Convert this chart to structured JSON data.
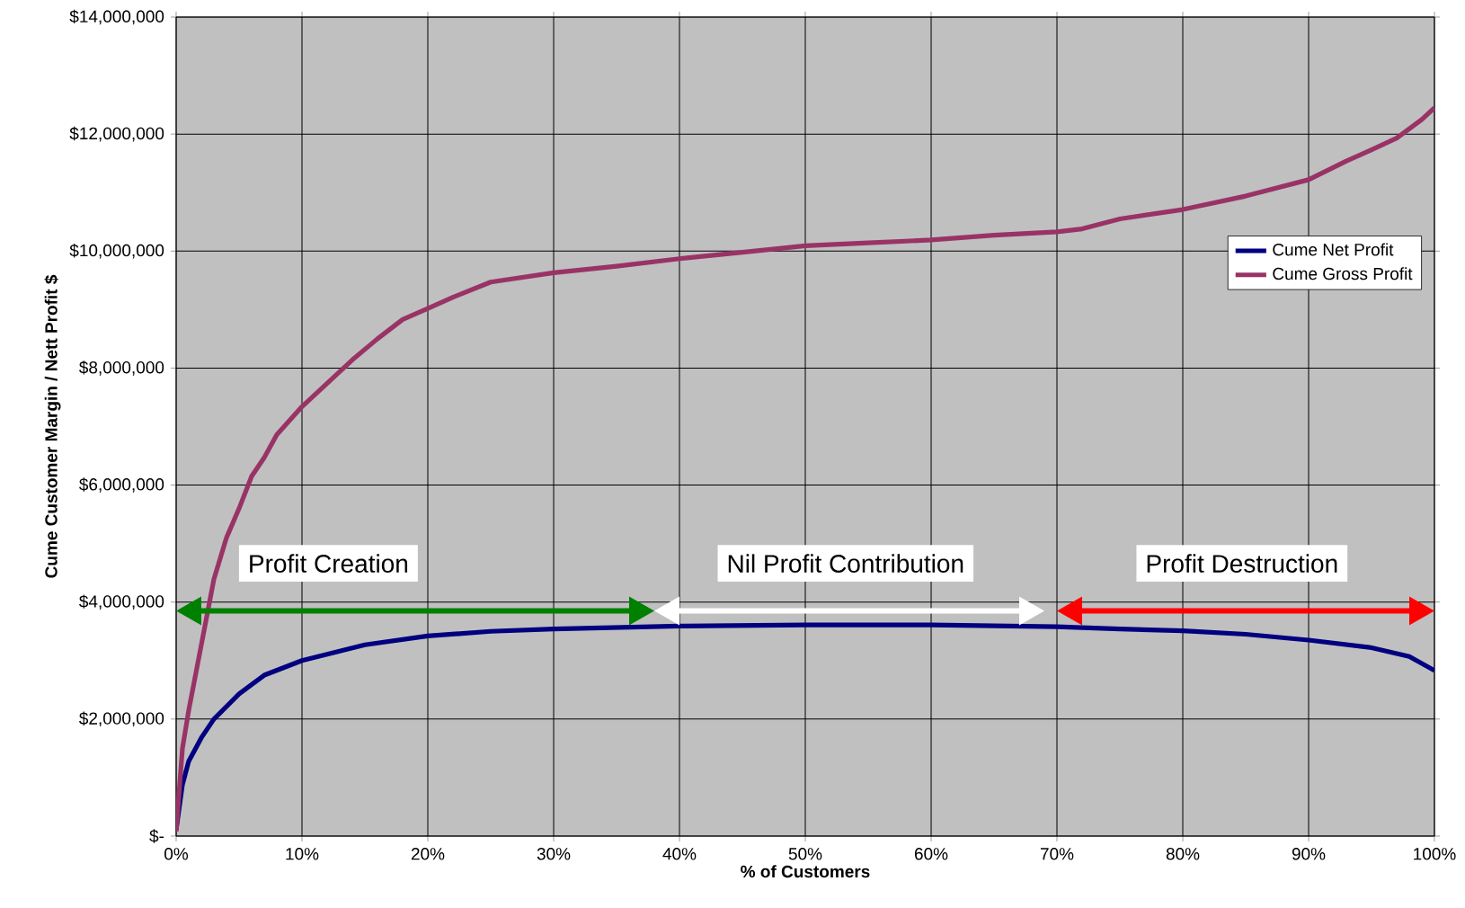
{
  "chart_data": {
    "type": "line",
    "xlabel": "% of Customers",
    "ylabel": "Cume Customer Margin / Nett Profit $",
    "xlim": [
      0,
      100
    ],
    "xticks": [
      {
        "value": 0,
        "label": "0%"
      },
      {
        "value": 10,
        "label": "10%"
      },
      {
        "value": 20,
        "label": "20%"
      },
      {
        "value": 30,
        "label": "30%"
      },
      {
        "value": 40,
        "label": "40%"
      },
      {
        "value": 50,
        "label": "50%"
      },
      {
        "value": 60,
        "label": "60%"
      },
      {
        "value": 70,
        "label": "70%"
      },
      {
        "value": 80,
        "label": "80%"
      },
      {
        "value": 90,
        "label": "90%"
      },
      {
        "value": 100,
        "label": "100%"
      }
    ],
    "ylim": [
      0,
      14000000
    ],
    "yticks": [
      {
        "value": 0,
        "label": "$-"
      },
      {
        "value": 2000000,
        "label": "$2,000,000"
      },
      {
        "value": 4000000,
        "label": "$4,000,000"
      },
      {
        "value": 6000000,
        "label": "$6,000,000"
      },
      {
        "value": 8000000,
        "label": "$8,000,000"
      },
      {
        "value": 10000000,
        "label": "$10,000,000"
      },
      {
        "value": 12000000,
        "label": "$12,000,000"
      },
      {
        "value": 14000000,
        "label": "$14,000,000"
      }
    ],
    "grid": true,
    "legend": "right",
    "marker": "none",
    "line_style": "solid",
    "series": [
      {
        "name": "Cume Net Profit",
        "color": "#000080",
        "x": [
          0,
          0.5,
          1,
          2,
          3,
          5,
          7,
          10,
          15,
          20,
          25,
          30,
          40,
          50,
          60,
          70,
          75,
          80,
          85,
          90,
          95,
          98,
          100
        ],
        "values": [
          110000,
          880000,
          1280000,
          1680000,
          2000000,
          2430000,
          2750000,
          3000000,
          3270000,
          3420000,
          3500000,
          3540000,
          3590000,
          3610000,
          3610000,
          3580000,
          3540000,
          3510000,
          3450000,
          3350000,
          3220000,
          3070000,
          2830000
        ]
      },
      {
        "name": "Cume Gross Profit",
        "color": "#993366",
        "x": [
          0,
          0.5,
          1,
          2,
          3,
          4,
          5,
          6,
          7,
          8,
          10,
          12,
          14,
          16,
          18,
          20,
          22,
          25,
          30,
          35,
          40,
          45,
          50,
          55,
          60,
          65,
          70,
          72,
          75,
          80,
          85,
          90,
          93,
          95,
          97,
          99,
          100
        ],
        "values": [
          80000,
          1500000,
          2150000,
          3270000,
          4390000,
          5100000,
          5600000,
          6150000,
          6470000,
          6860000,
          7340000,
          7740000,
          8140000,
          8500000,
          8830000,
          9020000,
          9210000,
          9470000,
          9630000,
          9740000,
          9870000,
          9980000,
          10090000,
          10140000,
          10190000,
          10270000,
          10330000,
          10380000,
          10550000,
          10710000,
          10940000,
          11220000,
          11540000,
          11730000,
          11930000,
          12250000,
          12450000
        ]
      }
    ],
    "annotations": [
      "Profit Creation",
      "Nil Profit Contribution",
      "Profit Destruction"
    ]
  }
}
